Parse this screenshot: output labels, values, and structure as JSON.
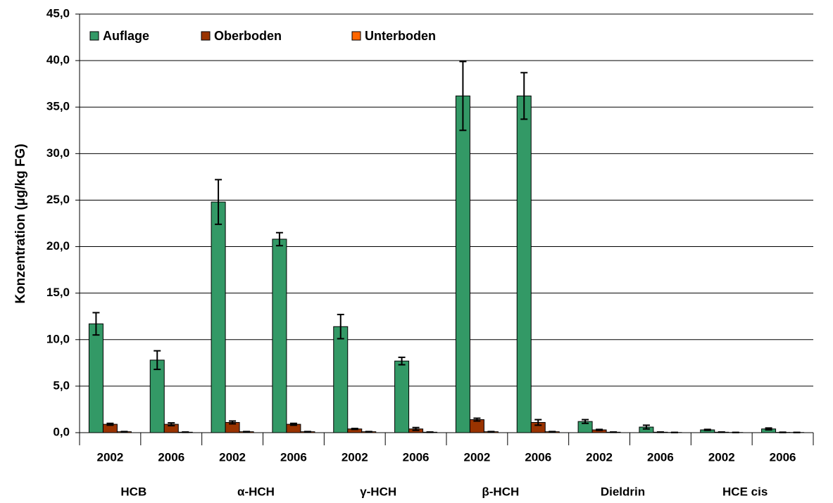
{
  "chart_data": {
    "type": "bar",
    "y_label": "Konzentration (µg/kg FG)",
    "categories": [
      "2002",
      "2006",
      "2002",
      "2006",
      "2002",
      "2006",
      "2002",
      "2006",
      "2002",
      "2006",
      "2002",
      "2006"
    ],
    "groups": [
      "HCB",
      "α-HCH",
      "γ-HCH",
      "β-HCH",
      "Dieldrin",
      "HCE cis"
    ],
    "series": [
      {
        "name": "Auflage",
        "color": "#339966",
        "values": [
          11.7,
          7.8,
          24.8,
          20.8,
          11.4,
          7.7,
          36.2,
          36.2,
          1.2,
          0.6,
          0.3,
          0.4
        ],
        "errors": [
          1.2,
          1.0,
          2.4,
          0.7,
          1.3,
          0.4,
          3.7,
          2.5,
          0.2,
          0.2,
          0.05,
          0.1
        ]
      },
      {
        "name": "Oberboden",
        "color": "#993300",
        "values": [
          0.9,
          0.9,
          1.1,
          0.9,
          0.4,
          0.4,
          1.4,
          1.1,
          0.3,
          0.05,
          0.05,
          0.03
        ],
        "errors": [
          0.1,
          0.15,
          0.15,
          0.1,
          0.05,
          0.15,
          0.15,
          0.3,
          0.05,
          0.02,
          0.02,
          0.02
        ]
      },
      {
        "name": "Unterboden",
        "color": "#ff6600",
        "values": [
          0.1,
          0.05,
          0.1,
          0.1,
          0.1,
          0.05,
          0.1,
          0.1,
          0.05,
          0.02,
          0.02,
          0.02
        ],
        "errors": [
          0.02,
          0.02,
          0.02,
          0.02,
          0.02,
          0.02,
          0.02,
          0.02,
          0.02,
          0.01,
          0.01,
          0.01
        ]
      }
    ],
    "ylim": [
      0,
      45
    ],
    "yticks": [
      {
        "value": 0,
        "label": "0,0"
      },
      {
        "value": 5,
        "label": "5,0"
      },
      {
        "value": 10,
        "label": "10,0"
      },
      {
        "value": 15,
        "label": "15,0"
      },
      {
        "value": 20,
        "label": "20,0"
      },
      {
        "value": 25,
        "label": "25,0"
      },
      {
        "value": 30,
        "label": "30,0"
      },
      {
        "value": 35,
        "label": "35,0"
      },
      {
        "value": 40,
        "label": "40,0"
      },
      {
        "value": 45,
        "label": "45,0"
      }
    ],
    "grid": true,
    "legend": "top-left"
  }
}
